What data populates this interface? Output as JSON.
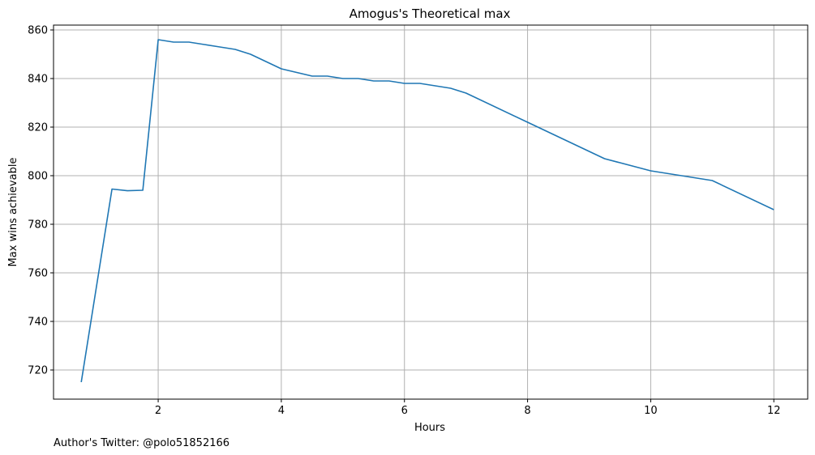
{
  "footer_note": "Author's Twitter: @polo51852166",
  "chart_data": {
    "type": "line",
    "title": "Amogus's Theoretical max",
    "xlabel": "Hours",
    "ylabel": "Max wins achievable",
    "xlim": [
      0.3,
      12.55
    ],
    "ylim": [
      708,
      862
    ],
    "xticks": [
      2,
      4,
      6,
      8,
      10,
      12
    ],
    "yticks": [
      720,
      740,
      760,
      780,
      800,
      820,
      840,
      860
    ],
    "grid": true,
    "line_color": "#1f77b4",
    "series": [
      {
        "x": [
          0.75,
          1.25,
          1.5,
          1.75,
          2.0,
          2.25,
          2.5,
          2.75,
          3.0,
          3.25,
          3.5,
          3.75,
          4.0,
          4.5,
          4.75,
          5.0,
          5.25,
          5.5,
          5.75,
          6.0,
          6.25,
          6.5,
          6.75,
          7.0,
          8.0,
          9.25,
          10.0,
          11.0,
          12.0
        ],
        "values": [
          715,
          794.5,
          793.8,
          794,
          856,
          855,
          855,
          854,
          853,
          852,
          850,
          847,
          844,
          841,
          841,
          840,
          840,
          839,
          839,
          838,
          838,
          837,
          836,
          834,
          822,
          807,
          802,
          798,
          786
        ]
      }
    ]
  }
}
